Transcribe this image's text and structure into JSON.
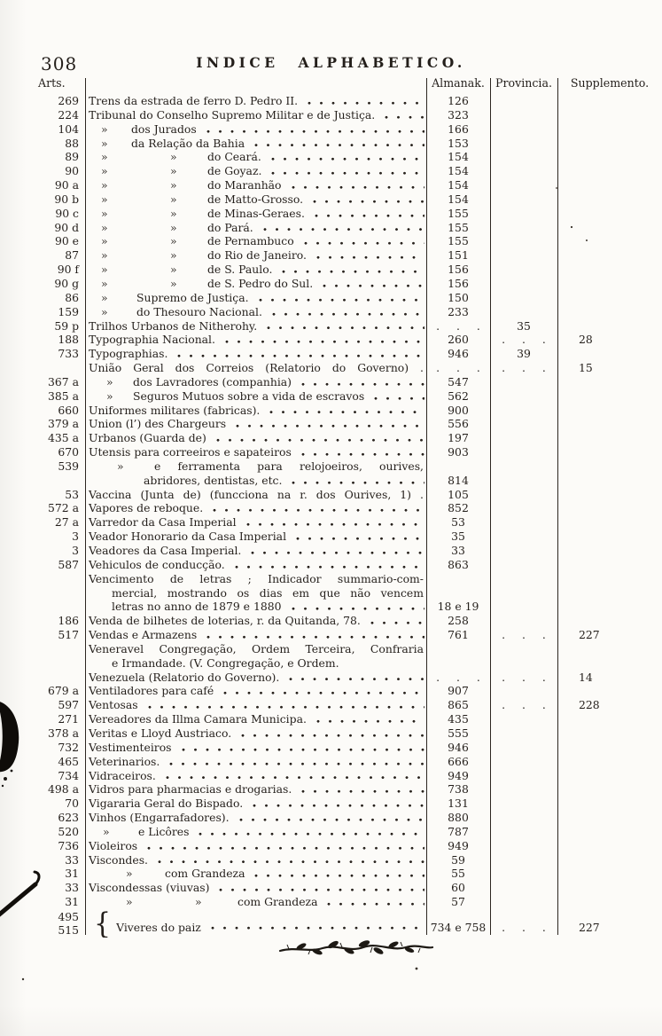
{
  "page": {
    "number": "308",
    "title": "INDICE ALPHABETICO."
  },
  "colors": {
    "ink": "#241f1b",
    "paper": "#fcfbf8"
  },
  "ornament": "vine-flourish",
  "table": {
    "headers": {
      "arts": "Arts.",
      "almanak": "Almanak.",
      "provincia": "Provincia.",
      "supplemento": "Supplemento."
    },
    "dots_placeholder": ". . .",
    "rows": [
      {
        "a": "269",
        "t": "Trens da estrada de ferro D. Pedro II.",
        "lead": true,
        "al": "126"
      },
      {
        "a": "224",
        "t": "Tribunal do Conselho Supremo Militar e de Justiça.",
        "lead": true,
        "al": "323"
      },
      {
        "a": "104",
        "cls": "sub1",
        "m": [
          "»"
        ],
        "t": "dos Jurados",
        "lead": true,
        "al": "166"
      },
      {
        "a": "88",
        "cls": "sub1",
        "m": [
          "»"
        ],
        "t": "da Relação da Bahia",
        "lead": true,
        "al": "153"
      },
      {
        "a": "89",
        "cls": "sub2",
        "m": [
          "»",
          "»"
        ],
        "t": "do Ceará.",
        "lead": true,
        "al": "154"
      },
      {
        "a": "90",
        "cls": "sub2",
        "m": [
          "»",
          "»"
        ],
        "t": "de Goyaz.",
        "lead": true,
        "al": "154"
      },
      {
        "a": "90 a",
        "cls": "sub2",
        "m": [
          "»",
          "»"
        ],
        "t": "do Maranhão",
        "lead": true,
        "al": "154"
      },
      {
        "a": "90 b",
        "cls": "sub2",
        "m": [
          "»",
          "»"
        ],
        "t": "de Matto-Grosso.",
        "lead": true,
        "al": "154"
      },
      {
        "a": "90 c",
        "cls": "sub2",
        "m": [
          "»",
          "»"
        ],
        "t": "de Minas-Geraes.",
        "lead": true,
        "al": "155"
      },
      {
        "a": "90 d",
        "cls": "sub2",
        "m": [
          "»",
          "»"
        ],
        "t": "do Pará.",
        "lead": true,
        "al": "155"
      },
      {
        "a": "90 e",
        "cls": "sub2",
        "m": [
          "»",
          "»"
        ],
        "t": "de Pernambuco",
        "lead": true,
        "al": "155"
      },
      {
        "a": "87",
        "cls": "sub2",
        "m": [
          "»",
          "»"
        ],
        "t": "do Rio de Janeiro.",
        "lead": true,
        "al": "151"
      },
      {
        "a": "90 f",
        "cls": "sub2",
        "m": [
          "»",
          "»"
        ],
        "t": "de S. Paulo.",
        "lead": true,
        "al": "156"
      },
      {
        "a": "90 g",
        "cls": "sub2",
        "m": [
          "»",
          "»"
        ],
        "t": "de S. Pedro do Sul.",
        "lead": true,
        "al": "156"
      },
      {
        "a": "86",
        "cls": "sub1c",
        "m": [
          "»"
        ],
        "t": "Supremo de Justiça.",
        "lead": true,
        "al": "150"
      },
      {
        "a": "159",
        "cls": "sub1c",
        "m": [
          "»"
        ],
        "t": "do Thesouro Nacional.",
        "lead": true,
        "al": "233"
      },
      {
        "a": "59 p",
        "t": "Trilhos Urbanos de Nitherohy.",
        "lead": true,
        "al": ". . .",
        "pr": "35"
      },
      {
        "a": "188",
        "t": "Typographia Nacional.",
        "lead": true,
        "al": "260",
        "pr": ". . .",
        "su": "28"
      },
      {
        "a": "733",
        "t": "Typographias.",
        "lead": true,
        "al": "946",
        "pr": "39"
      },
      {
        "a": "",
        "t": "União Geral dos Correios (Relatorio do Governo) .",
        "fill": true,
        "al": ". . .",
        "pr": ". . .",
        "su": "15"
      },
      {
        "a": "367 a",
        "cls": "subU",
        "m": [
          "»"
        ],
        "t": "dos Lavradores (companhia)",
        "lead": true,
        "al": "547"
      },
      {
        "a": "385 a",
        "cls": "subU",
        "m": [
          "»"
        ],
        "t": "Seguros Mutuos sobre a vida de escravos",
        "lead": true,
        "al": "562"
      },
      {
        "a": "660",
        "t": "Uniformes militares (fabricas).",
        "lead": true,
        "al": "900"
      },
      {
        "a": "379 a",
        "t": "Union (l’) des Chargeurs",
        "lead": true,
        "al": "556"
      },
      {
        "a": "435 a",
        "t": "Urbanos (Guarda de)",
        "lead": true,
        "al": "197"
      },
      {
        "a": "670",
        "t": "Utensis para correeiros e sapateiros",
        "lead": true,
        "al": "903"
      },
      {
        "a": "539",
        "cls": "subF",
        "m": [
          "»"
        ],
        "t": "e ferramenta para relojoeiros, ourives,",
        "fill": true
      },
      {
        "a": "",
        "cls": "contF",
        "t": "abridores, dentistas, etc.",
        "lead": true,
        "al": "814"
      },
      {
        "a": "53",
        "t": "Vaccina (Junta de) (funcciona na r. dos Ourives, 1) .",
        "fill": true,
        "al": "105"
      },
      {
        "a": "572 a",
        "t": "Vapores de reboque.",
        "lead": true,
        "al": "852"
      },
      {
        "a": "27 a",
        "t": "Varredor da Casa Imperial",
        "lead": true,
        "al": "53"
      },
      {
        "a": "3",
        "t": "Veador Honorario da Casa Imperial",
        "lead": true,
        "al": "35"
      },
      {
        "a": "3",
        "t": "Veadores da Casa Imperial.",
        "lead": true,
        "al": "33"
      },
      {
        "a": "587",
        "t": "Vehiculos de conducção.",
        "lead": true,
        "al": "863"
      },
      {
        "a": "",
        "t": "Vencimento de letras ; Indicador summario-com-",
        "fill": true
      },
      {
        "a": "",
        "cls": "contV",
        "t": "mercial, mostrando os dias em que não vencem",
        "fill": true
      },
      {
        "a": "",
        "cls": "contV",
        "t": "letras no anno de 1879 e 1880",
        "lead": true,
        "al": "18 e 19"
      },
      {
        "a": "186",
        "t": "Venda de bilhetes de loterias, r. da Quitanda, 78.",
        "lead": true,
        "al": "258"
      },
      {
        "a": "517",
        "t": "Vendas e Armazens",
        "lead": true,
        "al": "761",
        "pr": ". . .",
        "su": "227"
      },
      {
        "a": "",
        "t": "Veneravel Congregação, Ordem Terceira, Confraria",
        "fill": true
      },
      {
        "a": "",
        "cls": "contV",
        "t": "e Irmandade. (V. Congregação, e Ordem."
      },
      {
        "a": "",
        "t": "Venezuela (Relatorio do Governo).",
        "lead": true,
        "al": ". . .",
        "pr": ". . .",
        "su": "14"
      },
      {
        "a": "679 a",
        "t": "Ventiladores para café",
        "lead": true,
        "al": "907"
      },
      {
        "a": "597",
        "t": "Ventosas",
        "lead": true,
        "al": "865",
        "pr": ". . .",
        "su": "228"
      },
      {
        "a": "271",
        "t": "Vereadores da Illma Camara Municipa.",
        "lead": true,
        "al": "435"
      },
      {
        "a": "378 a",
        "t": "Veritas e Lloyd Austriaco.",
        "lead": true,
        "al": "555"
      },
      {
        "a": "732",
        "t": "Vestimenteiros",
        "lead": true,
        "al": "946"
      },
      {
        "a": "465",
        "t": "Veterinarios.",
        "lead": true,
        "al": "666"
      },
      {
        "a": "734",
        "t": "Vidraceiros.",
        "lead": true,
        "al": "949"
      },
      {
        "a": "498 a",
        "t": "Vidros para pharmacias e drogarias.",
        "lead": true,
        "al": "738"
      },
      {
        "a": "70",
        "t": "Vigararia Geral do Bispado.",
        "lead": true,
        "al": "131"
      },
      {
        "a": "623",
        "t": "Vinhos (Engarrafadores).",
        "lead": true,
        "al": "880"
      },
      {
        "a": "520",
        "cls": "subL",
        "m": [
          "»"
        ],
        "t": "e Licôres",
        "lead": true,
        "al": "787"
      },
      {
        "a": "736",
        "t": "Violeiros",
        "lead": true,
        "al": "949"
      },
      {
        "a": "33",
        "t": "Viscondes.",
        "lead": true,
        "al": "59"
      },
      {
        "a": "31",
        "cls": "subG",
        "m": [
          "»"
        ],
        "t": "com Grandeza",
        "lead": true,
        "al": "55"
      },
      {
        "a": "33",
        "t": "Viscondessas (viuvas)",
        "lead": true,
        "al": "60"
      },
      {
        "a": "31",
        "cls": "subGG",
        "m": [
          "»",
          "»"
        ],
        "t": "com Grandeza",
        "lead": true,
        "al": "57"
      },
      {
        "type": "brace",
        "a": "495",
        "a2": "515",
        "t": "Viveres do paiz",
        "lead": true,
        "al": "734 e 758",
        "pr": ". . .",
        "su": "227"
      }
    ]
  }
}
